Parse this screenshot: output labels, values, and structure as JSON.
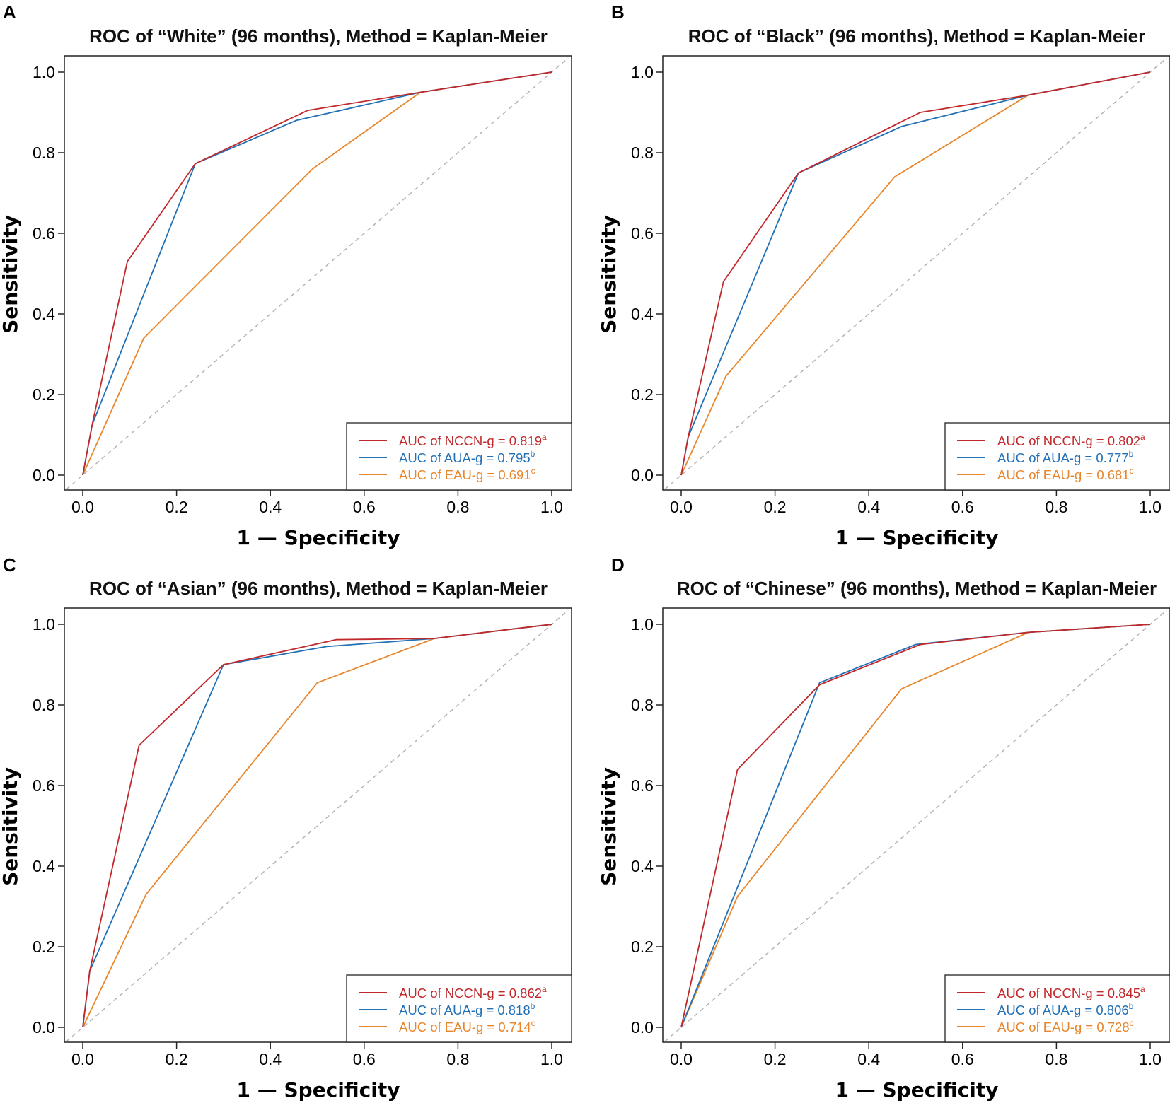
{
  "colors": {
    "nccn": "#c0282b",
    "aua": "#2270b5",
    "eau": "#e8862c",
    "diagonal": "#b0b0b0",
    "axis": "#222222"
  },
  "chart_data": [
    {
      "type": "line",
      "panel": "A",
      "title": "ROC of “White” (96 months), Method = Kaplan-Meier",
      "xlabel": "1 — Specificity",
      "ylabel": "Sensitivity",
      "xlim": [
        0,
        1
      ],
      "ylim": [
        0,
        1
      ],
      "xticks": [
        "0.0",
        "0.2",
        "0.4",
        "0.6",
        "0.8",
        "1.0"
      ],
      "yticks": [
        "0.0",
        "0.2",
        "0.4",
        "0.6",
        "0.8",
        "1.0"
      ],
      "reference_line": "diagonal",
      "legend_position": "bottom-right",
      "series": [
        {
          "name": "NCCN-g",
          "color_key": "nccn",
          "legend": "AUC of NCCN-g = 0.819",
          "sup": "a",
          "x": [
            0,
            0.02,
            0.095,
            0.24,
            0.48,
            0.72,
            1.0
          ],
          "y": [
            0,
            0.125,
            0.53,
            0.773,
            0.905,
            0.95,
            1.0
          ]
        },
        {
          "name": "AUA-g",
          "color_key": "aua",
          "legend": "AUC of AUA-g = 0.795",
          "sup": "b",
          "x": [
            0,
            0.02,
            0.24,
            0.455,
            0.72,
            1.0
          ],
          "y": [
            0,
            0.125,
            0.773,
            0.88,
            0.95,
            1.0
          ]
        },
        {
          "name": "EAU-g",
          "color_key": "eau",
          "legend": "AUC of EAU-g = 0.691",
          "sup": "c",
          "x": [
            0,
            0.13,
            0.49,
            0.72,
            1.0
          ],
          "y": [
            0,
            0.34,
            0.76,
            0.95,
            1.0
          ]
        }
      ]
    },
    {
      "type": "line",
      "panel": "B",
      "title": "ROC of “Black” (96 months), Method = Kaplan-Meier",
      "xlabel": "1 — Specificity",
      "ylabel": "Sensitivity",
      "xlim": [
        0,
        1
      ],
      "ylim": [
        0,
        1
      ],
      "xticks": [
        "0.0",
        "0.2",
        "0.4",
        "0.6",
        "0.8",
        "1.0"
      ],
      "yticks": [
        "0.0",
        "0.2",
        "0.4",
        "0.6",
        "0.8",
        "1.0"
      ],
      "reference_line": "diagonal",
      "legend_position": "bottom-right",
      "series": [
        {
          "name": "NCCN-g",
          "color_key": "nccn",
          "legend": "AUC of NCCN-g = 0.802",
          "sup": "a",
          "x": [
            0,
            0.015,
            0.09,
            0.25,
            0.51,
            0.74,
            1.0
          ],
          "y": [
            0,
            0.095,
            0.48,
            0.75,
            0.9,
            0.943,
            1.0
          ]
        },
        {
          "name": "AUA-g",
          "color_key": "aua",
          "legend": "AUC of AUA-g = 0.777",
          "sup": "b",
          "x": [
            0,
            0.015,
            0.25,
            0.47,
            0.74,
            1.0
          ],
          "y": [
            0,
            0.095,
            0.75,
            0.865,
            0.943,
            1.0
          ]
        },
        {
          "name": "EAU-g",
          "color_key": "eau",
          "legend": "AUC of EAU-g = 0.681",
          "sup": "c",
          "x": [
            0,
            0.095,
            0.455,
            0.74,
            1.0
          ],
          "y": [
            0,
            0.245,
            0.74,
            0.943,
            1.0
          ]
        }
      ]
    },
    {
      "type": "line",
      "panel": "C",
      "title": "ROC of “Asian” (96 months), Method = Kaplan-Meier",
      "xlabel": "1 — Specificity",
      "ylabel": "Sensitivity",
      "xlim": [
        0,
        1
      ],
      "ylim": [
        0,
        1
      ],
      "xticks": [
        "0.0",
        "0.2",
        "0.4",
        "0.6",
        "0.8",
        "1.0"
      ],
      "yticks": [
        "0.0",
        "0.2",
        "0.4",
        "0.6",
        "0.8",
        "1.0"
      ],
      "reference_line": "diagonal",
      "legend_position": "bottom-right",
      "series": [
        {
          "name": "NCCN-g",
          "color_key": "nccn",
          "legend": "AUC of NCCN-g = 0.862",
          "sup": "a",
          "x": [
            0,
            0.015,
            0.12,
            0.3,
            0.54,
            0.75,
            1.0
          ],
          "y": [
            0,
            0.14,
            0.7,
            0.9,
            0.962,
            0.965,
            1.0
          ]
        },
        {
          "name": "AUA-g",
          "color_key": "aua",
          "legend": "AUC of AUA-g = 0.818",
          "sup": "b",
          "x": [
            0,
            0.015,
            0.3,
            0.52,
            0.75,
            1.0
          ],
          "y": [
            0,
            0.14,
            0.9,
            0.945,
            0.965,
            1.0
          ]
        },
        {
          "name": "EAU-g",
          "color_key": "eau",
          "legend": "AUC of EAU-g = 0.714",
          "sup": "c",
          "x": [
            0,
            0.135,
            0.5,
            0.75,
            1.0
          ],
          "y": [
            0,
            0.33,
            0.855,
            0.965,
            1.0
          ]
        }
      ]
    },
    {
      "type": "line",
      "panel": "D",
      "title": "ROC of “Chinese” (96 months), Method = Kaplan-Meier",
      "xlabel": "1 — Specificity",
      "ylabel": "Sensitivity",
      "xlim": [
        0,
        1
      ],
      "ylim": [
        0,
        1
      ],
      "xticks": [
        "0.0",
        "0.2",
        "0.4",
        "0.6",
        "0.8",
        "1.0"
      ],
      "yticks": [
        "0.0",
        "0.2",
        "0.4",
        "0.6",
        "0.8",
        "1.0"
      ],
      "reference_line": "diagonal",
      "legend_position": "bottom-right",
      "series": [
        {
          "name": "NCCN-g",
          "color_key": "nccn",
          "legend": "AUC of NCCN-g = 0.845",
          "sup": "a",
          "x": [
            0,
            0.12,
            0.295,
            0.51,
            0.74,
            1.0
          ],
          "y": [
            0,
            0.64,
            0.85,
            0.95,
            0.98,
            1.0
          ]
        },
        {
          "name": "AUA-g",
          "color_key": "aua",
          "legend": "AUC of AUA-g = 0.806",
          "sup": "b",
          "x": [
            0,
            0.295,
            0.5,
            0.74,
            1.0
          ],
          "y": [
            0,
            0.855,
            0.95,
            0.98,
            1.0
          ]
        },
        {
          "name": "EAU-g",
          "color_key": "eau",
          "legend": "AUC of EAU-g = 0.728",
          "sup": "c",
          "x": [
            0,
            0.12,
            0.47,
            0.74,
            1.0
          ],
          "y": [
            0,
            0.325,
            0.84,
            0.98,
            1.0
          ]
        }
      ]
    }
  ]
}
